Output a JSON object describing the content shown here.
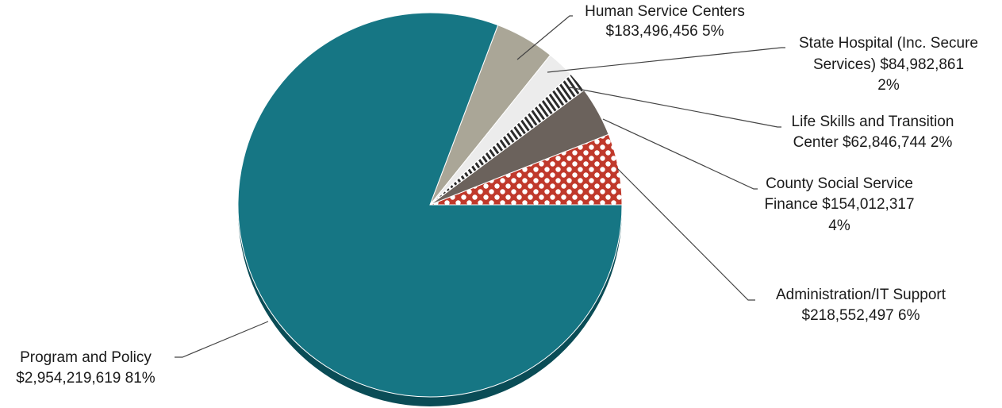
{
  "chart_data": {
    "type": "pie",
    "title": "",
    "start_angle_deg": 0,
    "direction": "counterclockwise",
    "slices": [
      {
        "label": "Administration/IT Support",
        "amount": "$218,552,497",
        "percent": "6%",
        "value": 218552497,
        "fill": "#c0392b",
        "pattern": "crosshatch"
      },
      {
        "label": "County Social Service Finance",
        "amount": "$154,012,317",
        "percent": "4%",
        "value": 154012317,
        "fill": "#6b625c",
        "pattern": "solid"
      },
      {
        "label": "Life Skills and Transition Center",
        "amount": "$62,846,744",
        "percent": "2%",
        "value": 62846744,
        "fill": "#2b2b2b",
        "pattern": "stripes"
      },
      {
        "label": "State Hospital (Inc. Secure Services)",
        "amount": "$84,982,861",
        "percent": "2%",
        "value": 84982861,
        "fill": "#ececec",
        "pattern": "solid"
      },
      {
        "label": "Human Service Centers",
        "amount": "$183,496,456",
        "percent": "5%",
        "value": 183496456,
        "fill": "#aaa697",
        "pattern": "solid"
      },
      {
        "label": "Program and Policy",
        "amount": "$2,954,219,619",
        "percent": "81%",
        "value": 2954219619,
        "fill": "#167684",
        "pattern": "solid"
      }
    ]
  },
  "labels": {
    "admin": {
      "line1": "Administration/IT Support",
      "line2": "$218,552,497  6%"
    },
    "county": {
      "line1": "County Social Service",
      "line2": "Finance  $154,012,317",
      "line3": "4%"
    },
    "life": {
      "line1": "Life Skills and Transition",
      "line2": "Center  $62,846,744  2%"
    },
    "state": {
      "line1": "State Hospital (Inc. Secure",
      "line2": "Services)  $84,982,861",
      "line3": "2%"
    },
    "hsc": {
      "line1": "Human Service Centers",
      "line2": "$183,496,456  5%"
    },
    "program": {
      "line1": "Program and Policy",
      "line2": "$2,954,219,619  81%"
    }
  }
}
